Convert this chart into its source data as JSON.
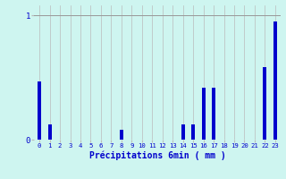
{
  "title": "",
  "xlabel": "Précipitations 6min ( mm )",
  "categories": [
    0,
    1,
    2,
    3,
    4,
    5,
    6,
    7,
    8,
    9,
    10,
    11,
    12,
    13,
    14,
    15,
    16,
    17,
    18,
    19,
    20,
    21,
    22,
    23
  ],
  "values": [
    0.47,
    0.12,
    0.0,
    0.0,
    0.0,
    0.0,
    0.0,
    0.0,
    0.08,
    0.0,
    0.0,
    0.0,
    0.0,
    0.0,
    0.12,
    0.12,
    0.42,
    0.42,
    0.0,
    0.0,
    0.0,
    0.0,
    0.58,
    0.95
  ],
  "bar_color": "#0000cc",
  "bg_color": "#cef5f0",
  "grid_color": "#bbbbbb",
  "line_color": "#999999",
  "ytick_color": "#0000cc",
  "xtick_color": "#0000cc",
  "xlabel_color": "#0000cc",
  "ylim": [
    0,
    1.08
  ],
  "yline": 1.0,
  "bar_width": 0.35
}
